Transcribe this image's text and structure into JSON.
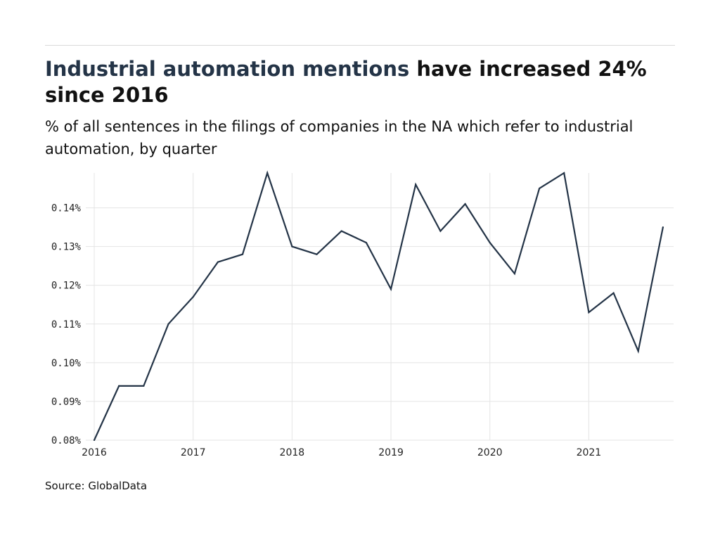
{
  "header": {
    "title_highlight": "Industrial automation mentions",
    "title_rest": " have increased 24% since 2016",
    "subtitle": "% of all sentences in the filings of companies in the NA which refer to industrial automation, by quarter"
  },
  "source": "Source: GlobalData",
  "colors": {
    "line": "#243447",
    "grid": "#e4e4e4",
    "title_highlight": "#243447"
  },
  "chart_data": {
    "type": "line",
    "title": "Industrial automation mentions have increased 24% since 2016",
    "subtitle": "% of all sentences in the filings of companies in the NA which refer to industrial automation, by quarter",
    "xlabel": "",
    "ylabel": "",
    "x": [
      "2016-Q1",
      "2016-Q2",
      "2016-Q3",
      "2016-Q4",
      "2017-Q1",
      "2017-Q2",
      "2017-Q3",
      "2017-Q4",
      "2018-Q1",
      "2018-Q2",
      "2018-Q3",
      "2018-Q4",
      "2019-Q1",
      "2019-Q2",
      "2019-Q3",
      "2019-Q4",
      "2020-Q1",
      "2020-Q2",
      "2020-Q3",
      "2020-Q4",
      "2021-Q1",
      "2021-Q2",
      "2021-Q3",
      "2021-Q4"
    ],
    "series": [
      {
        "values": [
          0.08,
          0.094,
          0.094,
          0.11,
          0.117,
          0.126,
          0.128,
          0.149,
          0.13,
          0.128,
          0.134,
          0.131,
          0.119,
          0.146,
          0.134,
          0.141,
          0.131,
          0.123,
          0.145,
          0.149,
          0.113,
          0.118,
          0.103,
          0.135
        ]
      }
    ],
    "ylim": [
      0.08,
      0.149
    ],
    "yticks": [
      0.08,
      0.09,
      0.1,
      0.11,
      0.12,
      0.13,
      0.14
    ],
    "ytick_labels": [
      "0.08%",
      "0.09%",
      "0.10%",
      "0.11%",
      "0.12%",
      "0.13%",
      "0.14%"
    ],
    "xticks": [
      "2016",
      "2017",
      "2018",
      "2019",
      "2020",
      "2021"
    ],
    "grid": true,
    "legend": "none"
  }
}
